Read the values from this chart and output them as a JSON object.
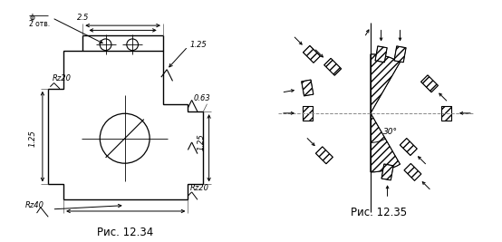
{
  "fig_width": 5.54,
  "fig_height": 2.67,
  "dpi": 100,
  "background": "#ffffff",
  "line_color": "#000000",
  "caption1": "Рис. 12.34",
  "caption2": "Рис. 12.35",
  "caption_fontsize": 8.5,
  "ann_fs": 6.0,
  "fig2_label_30": "30°"
}
